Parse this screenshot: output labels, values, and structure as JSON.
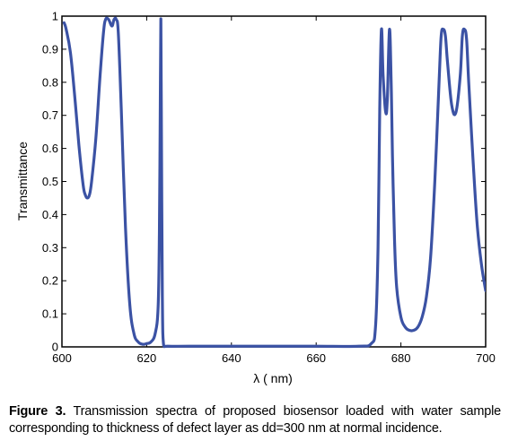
{
  "chart_data": {
    "type": "line",
    "xlabel": "λ ( nm)",
    "ylabel": "Transmittance",
    "xlim": [
      600,
      700
    ],
    "ylim": [
      0,
      1
    ],
    "x_ticks": [
      600,
      620,
      640,
      660,
      680,
      700
    ],
    "y_ticks": [
      0,
      0.1,
      0.2,
      0.3,
      0.4,
      0.5,
      0.6,
      0.7,
      0.8,
      0.9,
      1
    ],
    "grid": false,
    "line_color": "#3b52a4",
    "series": [
      {
        "x": [
          600.5,
          601,
          602,
          603,
          604,
          605,
          605.5,
          606,
          606.5,
          607,
          608,
          609,
          609.8,
          610.3,
          611,
          611.8,
          612.3,
          612.8,
          613.3,
          614,
          615,
          616,
          617,
          618,
          619,
          620,
          621,
          622,
          622.7,
          623,
          623.2,
          623.35,
          623.5,
          623.7,
          624,
          625,
          630,
          640,
          650,
          660,
          670,
          673,
          674,
          674.6,
          675,
          675.4,
          675.8,
          676.4,
          676.8,
          677.3,
          677.7,
          678,
          678.5,
          679,
          680,
          681,
          682,
          683,
          684,
          685,
          686,
          687,
          688,
          689,
          689.5,
          690,
          690.5,
          691,
          692,
          693,
          694,
          694.5,
          695,
          695.5,
          696,
          697,
          698,
          699,
          700
        ],
        "y": [
          0.98,
          0.96,
          0.89,
          0.76,
          0.61,
          0.49,
          0.46,
          0.45,
          0.46,
          0.5,
          0.63,
          0.82,
          0.95,
          0.99,
          0.99,
          0.97,
          0.99,
          0.99,
          0.95,
          0.72,
          0.36,
          0.13,
          0.04,
          0.015,
          0.008,
          0.01,
          0.015,
          0.04,
          0.12,
          0.35,
          0.72,
          0.99,
          0.6,
          0.15,
          0.005,
          0.002,
          0.002,
          0.002,
          0.002,
          0.002,
          0.002,
          0.01,
          0.06,
          0.3,
          0.72,
          0.96,
          0.82,
          0.71,
          0.75,
          0.96,
          0.8,
          0.58,
          0.32,
          0.18,
          0.09,
          0.06,
          0.05,
          0.05,
          0.06,
          0.09,
          0.15,
          0.27,
          0.5,
          0.8,
          0.94,
          0.96,
          0.94,
          0.86,
          0.73,
          0.71,
          0.82,
          0.94,
          0.96,
          0.93,
          0.8,
          0.57,
          0.37,
          0.25,
          0.17
        ]
      }
    ]
  },
  "caption": {
    "label": "Figure 3.",
    "text": " Transmission spectra of proposed biosensor loaded with water sample corresponding to thickness of defect layer as dd=300 nm at normal incidence."
  }
}
